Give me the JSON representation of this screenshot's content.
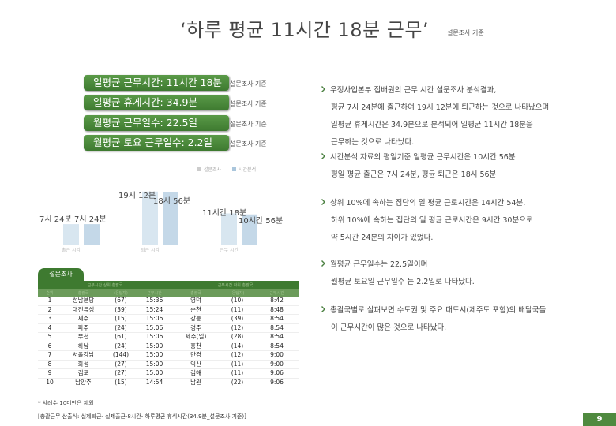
{
  "title": "‘하루 평균 11시간 18분 근무’",
  "title_note": "설문조사 기준",
  "stats": [
    {
      "label": "일평균 근무시간: 11시간 18분",
      "note": "설문조사 기준"
    },
    {
      "label": "일평균 휴게시간: 34.9분",
      "note": "설문조사 기준"
    },
    {
      "label": "월평균 근무일수: 22.5일",
      "note": "설문조사 기준"
    },
    {
      "label": "월평균 토요 근무일수: 2.2일",
      "note": "설문조사 기준"
    }
  ],
  "paragraphs": [
    {
      "bullet": true,
      "text": "우정사업본부 집배원의 근무 시간 설문조사 분석결과,"
    },
    {
      "bullet": false,
      "text": "평균 7시 24분에 출근하여 19시 12분에 퇴근하는 것으로 나타났으며"
    },
    {
      "bullet": false,
      "text": "일평균 휴게시간은 34.9분으로 분석되어 일평균 11시간 18분을"
    },
    {
      "bullet": false,
      "text": "근무하는 것으로 나타났다."
    },
    {
      "bullet": true,
      "text": "시간분석 자료의 평일기준 일평균 근무시간은 10시간 56분"
    },
    {
      "bullet": false,
      "text": "평일 평균 출근은 7시 24분,  평균 퇴근은 18시 56분"
    },
    {
      "bullet": true,
      "text": "상위 10%에 속하는 집단의 일 평균 근로시간은 14시간 54분,"
    },
    {
      "bullet": false,
      "text": "하위 10%에 속하는 집단의 일 평균 근로시간은 9시간 30분으로"
    },
    {
      "bullet": false,
      "text": "약 5시간 24분의 차이가 있었다."
    },
    {
      "bullet": true,
      "text": "월평균 근무일수는 22.5일이며"
    },
    {
      "bullet": false,
      "text": "월평균 토요일 근무일수 는 2.2일로 나타났다."
    },
    {
      "bullet": true,
      "text": "총괄국별로 살펴보면 수도권 및 주요 대도시(제주도 포함)의 배달국들"
    },
    {
      "bullet": false,
      "text": "이 근무시간이 많은 것으로 나타났다."
    }
  ],
  "chart_legend": [
    "설문조사",
    "시간분석"
  ],
  "chart_labels": {
    "leave_1": "19시 12분",
    "leave_2": "18시 56분",
    "arrive_1": "7시 24분",
    "arrive_2": "7시 24분",
    "work_1": "11시간 18분",
    "work_2": "10시간 56분"
  },
  "chart_categories": [
    "출근 시각",
    "퇴근 시각",
    "근무 시간"
  ],
  "chart_data": {
    "type": "bar",
    "categories": [
      "출근 시각",
      "퇴근 시각",
      "근무 시간"
    ],
    "series": [
      {
        "name": "설문조사",
        "values": [
          7.4,
          19.2,
          11.3
        ]
      },
      {
        "name": "시간분석",
        "values": [
          7.4,
          18.93,
          10.93
        ]
      }
    ],
    "title": "",
    "xlabel": "",
    "ylabel": ""
  },
  "survey_tab": "설문조사",
  "table": {
    "group_headers": [
      "근무시간 상위 총괄국",
      "근무시간 하위 총괄국"
    ],
    "sub_headers": [
      "순위",
      "총괄국",
      "(응답자)",
      "근무시간",
      "총괄국",
      "(응답자)",
      "근무시간"
    ],
    "rows": [
      [
        "1",
        "성남분당",
        "(67)",
        "15:36",
        "영덕",
        "(10)",
        "8:42"
      ],
      [
        "2",
        "대전유성",
        "(39)",
        "15:24",
        "순천",
        "(11)",
        "8:48"
      ],
      [
        "3",
        "제주",
        "(15)",
        "15:06",
        "강릉",
        "(39)",
        "8:54"
      ],
      [
        "4",
        "파주",
        "(24)",
        "15:06",
        "경주",
        "(12)",
        "8:54"
      ],
      [
        "5",
        "부천",
        "(61)",
        "15:06",
        "제주(일)",
        "(28)",
        "8:54"
      ],
      [
        "6",
        "하남",
        "(24)",
        "15:00",
        "홍천",
        "(14)",
        "8:54"
      ],
      [
        "7",
        "서울강남",
        "(144)",
        "15:00",
        "만경",
        "(12)",
        "9:00"
      ],
      [
        "8",
        "화성",
        "(27)",
        "15:00",
        "익산",
        "(11)",
        "9:00"
      ],
      [
        "9",
        "김포",
        "(27)",
        "15:00",
        "김해",
        "(11)",
        "9:06"
      ],
      [
        "10",
        "남양주",
        "(15)",
        "14:54",
        "남원",
        "(22)",
        "9:06"
      ]
    ]
  },
  "footnote": "* 사례수 10미만은 제외",
  "source": "[총괄근무 산출식: 실제퇴근- 실제출근-8시간- 하루평균 휴식시간(34.9분_설문조사 기준)]",
  "page_number": "9",
  "colors": {
    "accent": "#3e7a30",
    "bar": "#d8e6f0"
  }
}
